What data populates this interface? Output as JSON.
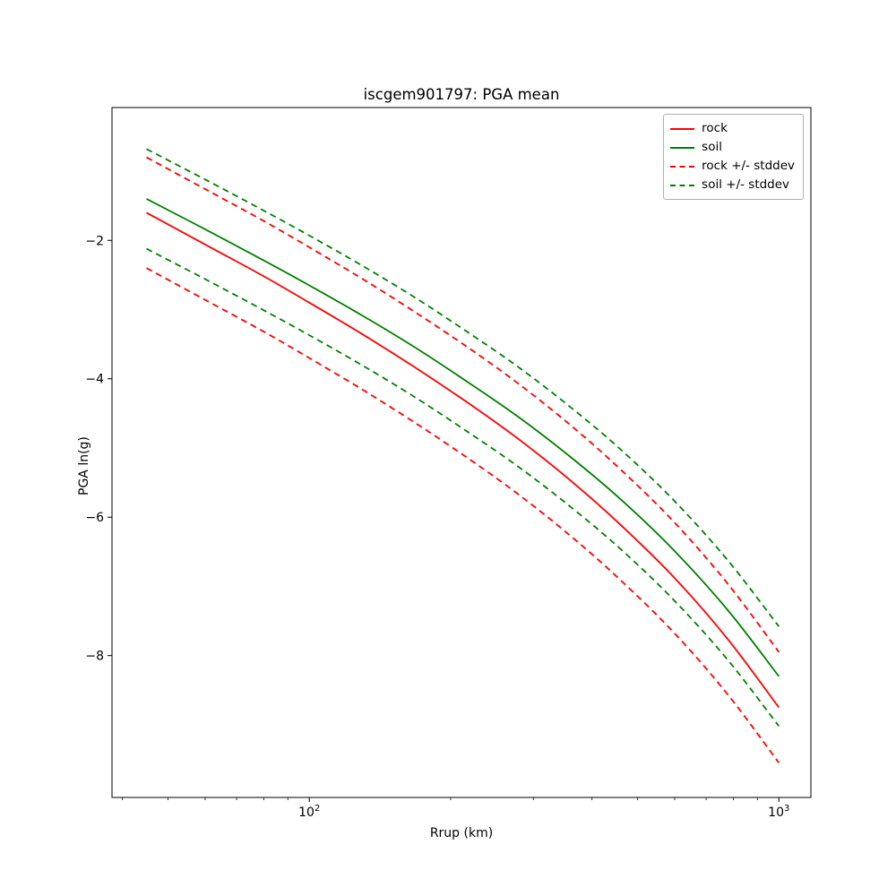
{
  "chart_data": {
    "type": "line",
    "title": "iscgem901797: PGA mean",
    "xlabel": "Rrup (km)",
    "ylabel": "PGA ln(g)",
    "xscale": "log",
    "grid": false,
    "xlim": [
      38,
      1170
    ],
    "ylim": [
      -10.05,
      -0.08
    ],
    "x": [
      45,
      60,
      80,
      100,
      130,
      170,
      220,
      280,
      360,
      460,
      600,
      780,
      1000
    ],
    "series": [
      {
        "name": "rock",
        "color": "#ff0000",
        "dash": false,
        "values": [
          -1.6,
          -2.06,
          -2.52,
          -2.9,
          -3.36,
          -3.86,
          -4.37,
          -4.88,
          -5.47,
          -6.11,
          -6.88,
          -7.77,
          -8.75
        ]
      },
      {
        "name": "soil",
        "color": "#008000",
        "dash": false,
        "values": [
          -1.4,
          -1.84,
          -2.29,
          -2.65,
          -3.09,
          -3.57,
          -4.07,
          -4.56,
          -5.13,
          -5.74,
          -6.49,
          -7.35,
          -8.3
        ]
      },
      {
        "name": "rock-plus-stddev",
        "color": "#ff0000",
        "dash": true,
        "values": [
          -0.8,
          -1.26,
          -1.72,
          -2.1,
          -2.56,
          -3.06,
          -3.57,
          -4.08,
          -4.67,
          -5.31,
          -6.08,
          -6.97,
          -7.95
        ]
      },
      {
        "name": "rock-minus-stddev",
        "color": "#ff0000",
        "dash": true,
        "values": [
          -2.4,
          -2.86,
          -3.32,
          -3.7,
          -4.16,
          -4.66,
          -5.17,
          -5.68,
          -6.27,
          -6.91,
          -7.68,
          -8.57,
          -9.55
        ]
      },
      {
        "name": "soil-plus-stddev",
        "color": "#008000",
        "dash": true,
        "values": [
          -0.68,
          -1.12,
          -1.57,
          -1.93,
          -2.37,
          -2.85,
          -3.35,
          -3.84,
          -4.41,
          -5.02,
          -5.77,
          -6.63,
          -7.58
        ]
      },
      {
        "name": "soil-minus-stddev",
        "color": "#008000",
        "dash": true,
        "values": [
          -2.12,
          -2.56,
          -3.01,
          -3.37,
          -3.81,
          -4.29,
          -4.79,
          -5.28,
          -5.85,
          -6.46,
          -7.21,
          -8.07,
          -9.02
        ]
      }
    ],
    "rock_stddev": 0.8,
    "soil_stddev": 0.72,
    "yticks": [
      {
        "value": -2,
        "label": "−2"
      },
      {
        "value": -4,
        "label": "−4"
      },
      {
        "value": -6,
        "label": "−6"
      },
      {
        "value": -8,
        "label": "−8"
      }
    ],
    "xticks": [
      {
        "value": 100,
        "base": "10",
        "exp": "2"
      },
      {
        "value": 1000,
        "base": "10",
        "exp": "3"
      }
    ],
    "xminorticks": [
      40,
      50,
      60,
      70,
      80,
      90,
      200,
      300,
      400,
      500,
      600,
      700,
      800,
      900
    ],
    "legend": {
      "position": "upper right",
      "entries": [
        {
          "label": "rock",
          "color": "#ff0000",
          "dash": false
        },
        {
          "label": "soil",
          "color": "#008000",
          "dash": false
        },
        {
          "label": "rock +/- stddev",
          "color": "#ff0000",
          "dash": true
        },
        {
          "label": "soil +/- stddev",
          "color": "#008000",
          "dash": true
        }
      ]
    }
  }
}
